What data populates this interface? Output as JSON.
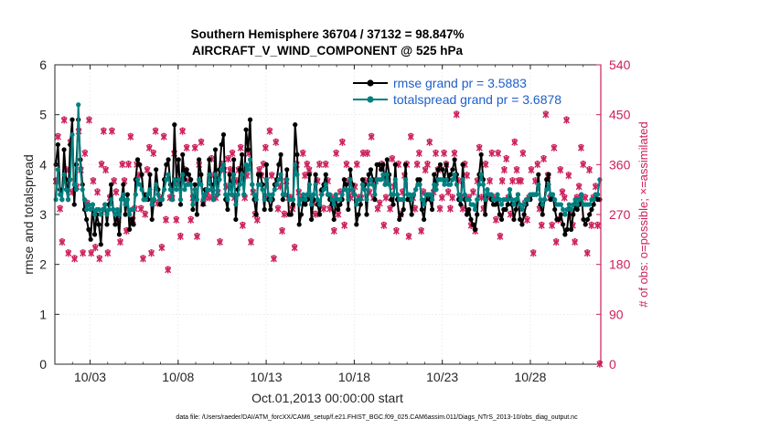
{
  "chart_data": {
    "type": "line",
    "title": "Southern Hemisphere 36704 / 37132 = 98.847%",
    "subtitle": "AIRCRAFT_V_WIND_COMPONENT @ 525 hPa",
    "xlabel": "Oct.01,2013 00:00:00 start",
    "ylabel": "rmse and totalspread",
    "ylabel_right": "# of obs: o=possible; ×=assimilated",
    "footer": "data file: /Users/raeder/DAI/ATM_forcXX/CAM6_setup/f.e21.FHIST_BGC.f09_025.CAM6assim.011/Diags_NTrS_2013-10/obs_diag_output.nc",
    "x_start_day": 1,
    "xlim": [
      1.0,
      32.0
    ],
    "ylim": [
      0,
      6
    ],
    "ylim_right": [
      0,
      540
    ],
    "x_ticks": [
      3,
      8,
      13,
      18,
      23,
      28
    ],
    "x_tick_labels": [
      "10/03",
      "10/08",
      "10/13",
      "10/18",
      "10/23",
      "10/28"
    ],
    "y_ticks": [
      0,
      1,
      2,
      3,
      4,
      5,
      6
    ],
    "y_tick_labels": [
      "0",
      "1",
      "2",
      "3",
      "4",
      "5",
      "6"
    ],
    "y_right_ticks": [
      0,
      90,
      180,
      270,
      360,
      450,
      540
    ],
    "y_right_tick_labels": [
      "0",
      "90",
      "180",
      "270",
      "360",
      "450",
      "540"
    ],
    "grid": true,
    "legend_position": "top-right",
    "colors": {
      "rmse": "#000000",
      "spread": "#008080",
      "obs": "#cc1f5b",
      "axis": "#262626",
      "grid": "#dddddd"
    },
    "series": [
      {
        "name": "rmse",
        "legend": "rmse grand pr = 3.5883",
        "values": [
          4.0,
          4.4,
          3.5,
          3.3,
          4.3,
          3.7,
          3.3,
          4.4,
          4.9,
          3.2,
          4.0,
          4.9,
          4.1,
          3.6,
          3.1,
          2.9,
          2.7,
          2.5,
          3.2,
          2.6,
          3.0,
          2.8,
          2.4,
          3.1,
          3.2,
          2.8,
          3.2,
          3.6,
          3.1,
          2.8,
          3.0,
          2.6,
          3.3,
          3.6,
          3.0,
          3.4,
          2.7,
          2.9,
          2.8,
          3.7,
          4.1,
          4.0,
          3.8,
          3.3,
          3.4,
          3.3,
          3.8,
          2.9,
          3.3,
          3.9,
          3.5,
          3.2,
          3.3,
          3.7,
          4.0,
          4.1,
          3.6,
          3.3,
          4.8,
          3.7,
          4.1,
          3.2,
          4.2,
          3.7,
          3.9,
          3.8,
          3.7,
          3.1,
          3.6,
          3.0,
          4.1,
          3.8,
          3.2,
          3.5,
          3.5,
          4.1,
          3.6,
          3.3,
          4.3,
          3.4,
          3.9,
          4.4,
          4.6,
          3.3,
          3.1,
          3.8,
          3.4,
          4.1,
          2.9,
          3.5,
          3.9,
          4.2,
          3.4,
          4.7,
          4.3,
          4.9,
          3.6,
          3.3,
          3.0,
          3.8,
          3.8,
          3.6,
          3.1,
          4.0,
          3.3,
          3.1,
          3.3,
          3.6,
          3.7,
          4.0,
          4.2,
          3.3,
          3.4,
          3.9,
          3.0,
          3.0,
          3.2,
          4.8,
          4.2,
          2.8,
          3.0,
          3.3,
          3.2,
          3.3,
          3.8,
          2.9,
          3.3,
          3.8,
          3.2,
          3.0,
          3.5,
          3.6,
          3.8,
          3.4,
          3.3,
          3.2,
          2.9,
          3.3,
          3.1,
          3.2,
          3.3,
          3.7,
          3.6,
          3.1,
          3.9,
          3.6,
          3.4,
          2.8,
          3.0,
          3.2,
          3.7,
          3.6,
          3.0,
          3.8,
          3.9,
          3.7,
          3.3,
          4.0,
          4.0,
          3.9,
          4.0,
          3.6,
          4.1,
          3.8,
          3.3,
          3.2,
          4.0,
          3.3,
          2.9,
          3.0,
          3.1,
          4.0,
          3.3,
          3.3,
          3.0,
          3.4,
          3.5,
          3.7,
          3.7,
          3.1,
          2.9,
          3.3,
          3.4,
          3.3,
          3.1,
          3.8,
          3.6,
          3.9,
          4.0,
          3.9,
          3.7,
          4.0,
          3.7,
          3.8,
          3.9,
          4.1,
          3.8,
          3.3,
          3.2,
          4.0,
          3.3,
          3.0,
          3.1,
          2.9,
          2.8,
          2.7,
          3.0,
          3.8,
          4.2,
          3.7,
          3.0,
          3.5,
          3.4,
          3.3,
          3.2,
          3.2,
          3.3,
          3.0,
          2.9,
          3.1,
          3.1,
          3.2,
          3.5,
          3.2,
          2.9,
          3.1,
          3.4,
          2.9,
          2.8,
          3.0,
          3.2,
          3.3,
          3.3,
          3.4,
          3.4,
          3.4,
          3.8,
          3.2,
          3.0,
          3.3,
          3.7,
          3.8,
          3.3,
          3.4,
          3.1,
          2.9,
          2.9,
          3.0,
          2.8,
          2.6,
          2.7,
          3.1,
          2.7,
          3.0,
          3.2,
          3.1,
          3.2,
          3.4,
          2.9,
          2.8,
          2.9,
          3.0,
          3.1,
          3.2,
          3.4,
          3.3,
          3.3
        ]
      },
      {
        "name": "totalspread",
        "legend": "totalspread grand pr = 3.6878",
        "values": [
          3.3,
          3.9,
          3.4,
          3.3,
          3.8,
          3.5,
          3.3,
          3.7,
          4.6,
          3.6,
          3.5,
          5.2,
          3.9,
          3.5,
          3.3,
          3.1,
          3.2,
          3.1,
          3.2,
          3.0,
          3.1,
          3.1,
          3.0,
          3.1,
          3.2,
          3.0,
          3.1,
          3.3,
          3.1,
          3.0,
          3.1,
          3.0,
          3.3,
          3.4,
          3.2,
          3.3,
          3.0,
          3.1,
          3.1,
          3.4,
          3.7,
          3.6,
          3.5,
          3.3,
          3.3,
          3.4,
          3.5,
          3.2,
          3.3,
          3.6,
          3.4,
          3.3,
          3.3,
          3.5,
          3.7,
          3.8,
          3.5,
          3.3,
          3.7,
          3.5,
          3.7,
          3.3,
          3.8,
          3.5,
          3.6,
          3.6,
          3.6,
          3.2,
          3.5,
          3.3,
          3.7,
          3.6,
          3.3,
          3.4,
          3.5,
          3.8,
          3.5,
          3.3,
          3.8,
          3.4,
          3.7,
          3.9,
          4.0,
          3.4,
          3.3,
          3.6,
          3.4,
          3.8,
          3.2,
          3.4,
          3.6,
          3.8,
          3.4,
          4.0,
          3.9,
          4.1,
          3.6,
          3.4,
          3.3,
          3.6,
          3.6,
          3.5,
          3.3,
          3.7,
          3.4,
          3.3,
          3.4,
          3.5,
          3.6,
          3.7,
          3.8,
          3.4,
          3.4,
          3.7,
          3.3,
          3.3,
          3.3,
          4.0,
          3.8,
          3.2,
          3.3,
          3.4,
          3.3,
          3.4,
          3.6,
          3.2,
          3.4,
          3.6,
          3.3,
          3.2,
          3.4,
          3.5,
          3.6,
          3.4,
          3.4,
          3.3,
          3.2,
          3.4,
          3.3,
          3.3,
          3.4,
          3.5,
          3.5,
          3.3,
          3.7,
          3.5,
          3.4,
          3.2,
          3.3,
          3.3,
          3.6,
          3.5,
          3.3,
          3.6,
          3.7,
          3.6,
          3.4,
          3.7,
          3.7,
          3.7,
          3.8,
          3.6,
          3.8,
          3.6,
          3.4,
          3.4,
          3.7,
          3.4,
          3.3,
          3.3,
          3.3,
          3.7,
          3.4,
          3.4,
          3.3,
          3.4,
          3.5,
          3.6,
          3.6,
          3.3,
          3.2,
          3.4,
          3.4,
          3.4,
          3.3,
          3.6,
          3.5,
          3.7,
          3.7,
          3.7,
          3.6,
          3.7,
          3.6,
          3.6,
          3.7,
          3.8,
          3.6,
          3.4,
          3.3,
          3.7,
          3.4,
          3.3,
          3.3,
          3.2,
          3.2,
          3.1,
          3.3,
          3.6,
          3.8,
          3.6,
          3.3,
          3.5,
          3.4,
          3.4,
          3.3,
          3.3,
          3.4,
          3.3,
          3.2,
          3.3,
          3.3,
          3.3,
          3.5,
          3.3,
          3.2,
          3.3,
          3.4,
          3.2,
          3.1,
          3.2,
          3.3,
          3.3,
          3.4,
          3.4,
          3.4,
          3.4,
          3.6,
          3.3,
          3.2,
          3.3,
          3.5,
          3.6,
          3.4,
          3.4,
          3.3,
          3.2,
          3.2,
          3.2,
          3.1,
          3.0,
          3.1,
          3.2,
          3.1,
          3.2,
          3.3,
          3.2,
          3.3,
          3.4,
          3.2,
          3.2,
          3.2,
          3.2,
          3.3,
          3.3,
          3.4,
          3.4,
          3.7
        ]
      }
    ],
    "obs_values": [
      330,
      410,
      280,
      220,
      440,
      350,
      200,
      400,
      310,
      190,
      320,
      420,
      350,
      200,
      380,
      290,
      440,
      200,
      330,
      210,
      310,
      190,
      360,
      420,
      350,
      200,
      300,
      420,
      330,
      310,
      260,
      220,
      360,
      330,
      240,
      360,
      410,
      260,
      280,
      360,
      340,
      280,
      190,
      270,
      350,
      390,
      200,
      380,
      420,
      290,
      300,
      210,
      410,
      260,
      170,
      300,
      300,
      380,
      260,
      330,
      230,
      420,
      350,
      390,
      330,
      260,
      300,
      390,
      230,
      360,
      400,
      290,
      300,
      310,
      300,
      370,
      340,
      300,
      310,
      220,
      360,
      350,
      320,
      370,
      350,
      380,
      300,
      330,
      350,
      390,
      250,
      300,
      340,
      380,
      220,
      310,
      270,
      260,
      350,
      340,
      360,
      390,
      300,
      420,
      340,
      190,
      400,
      280,
      320,
      240,
      270,
      330,
      300,
      300,
      280,
      210,
      360,
      310,
      300,
      380,
      340,
      360,
      350,
      300,
      290,
      270,
      330,
      360,
      310,
      280,
      360,
      330,
      280,
      300,
      240,
      380,
      270,
      310,
      400,
      250,
      360,
      330,
      300,
      310,
      320,
      360,
      300,
      300,
      380,
      330,
      380,
      310,
      410,
      300,
      330,
      280,
      290,
      360,
      250,
      300,
      330,
      280,
      370,
      320,
      240,
      360,
      270,
      310,
      340,
      360,
      230,
      410,
      300,
      280,
      360,
      380,
      240,
      310,
      350,
      360,
      400,
      300,
      310,
      380,
      350,
      280,
      300,
      380,
      360,
      310,
      280,
      300,
      380,
      450,
      330,
      300,
      280,
      360,
      340,
      300,
      250,
      310,
      240,
      330,
      390,
      300,
      280,
      360,
      300,
      330,
      380,
      300,
      260,
      380,
      230,
      330,
      350,
      370,
      300,
      270,
      330,
      400,
      350,
      330,
      330,
      380,
      290,
      260,
      300,
      350,
      200,
      330,
      360,
      280,
      250,
      370,
      450,
      340,
      300,
      250,
      390,
      220,
      260,
      350,
      310,
      300,
      440,
      340,
      270,
      250,
      220,
      300,
      320,
      390,
      360,
      300,
      200,
      350,
      250,
      300,
      320,
      250,
      0
    ]
  }
}
